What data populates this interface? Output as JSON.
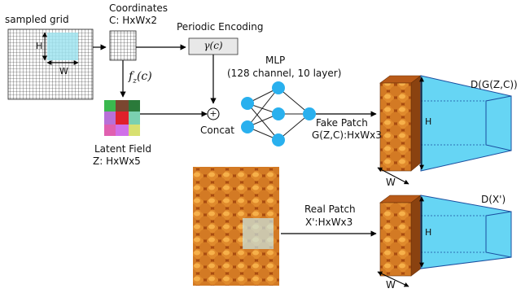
{
  "sampled_grid": {
    "label": "sampled grid",
    "h": "H",
    "w": "W"
  },
  "coordinates": {
    "line1": "Coordinates",
    "line2": "C: HxWx2"
  },
  "encoding": {
    "title": "Periodic Encoding",
    "symbol": "γ(c)"
  },
  "latent_fn": {
    "symbol": "f_z(c)"
  },
  "latent_field": {
    "line1": "Latent Field",
    "line2": "Z: HxWx5"
  },
  "concat": {
    "label": "Concat",
    "symbol": "+"
  },
  "mlp": {
    "line1": "MLP",
    "line2": "(128 channel, 10 layer)"
  },
  "fake_patch": {
    "line1": "Fake Patch",
    "line2": "G(Z,C):HxWx3",
    "h": "H",
    "w": "W"
  },
  "disc_fake": {
    "label": "D(G(Z,C))"
  },
  "real_patch": {
    "line1": "Real Patch",
    "line2": "X':HxWx3",
    "h": "H",
    "w": "W"
  },
  "disc_real": {
    "label": "D(X')"
  },
  "colors": {
    "highlight": "#9fe3ef",
    "node": "#29b0ee",
    "disc": "#66d5f4",
    "honey": "#c8661c",
    "arrow": "#000000"
  }
}
